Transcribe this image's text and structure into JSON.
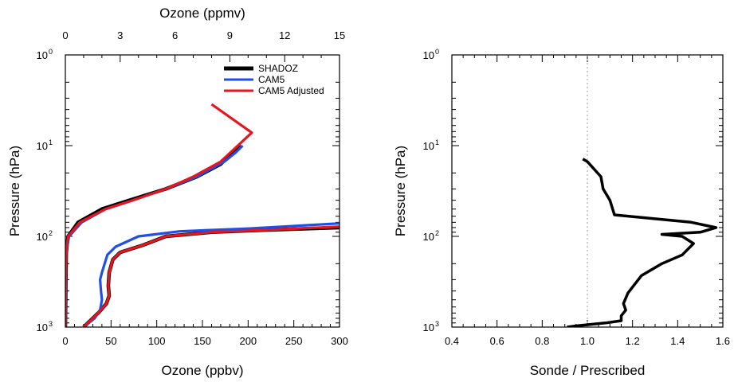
{
  "chart_data": [
    {
      "type": "line",
      "xlabel": "Ozone (ppbv)",
      "x2label": "Ozone (ppmv)",
      "ylabel": "Pressure (hPa)",
      "xlim": [
        0,
        300
      ],
      "x2lim": [
        0,
        15
      ],
      "ylim": [
        1000,
        1
      ],
      "yscale": "log",
      "xticks": [
        "0",
        "50",
        "100",
        "150",
        "200",
        "250",
        "300"
      ],
      "x2ticks": [
        "0",
        "3",
        "6",
        "9",
        "12",
        "15"
      ],
      "yticks": [
        {
          "base": "10",
          "exp": "0"
        },
        {
          "base": "10",
          "exp": "1"
        },
        {
          "base": "10",
          "exp": "2"
        },
        {
          "base": "10",
          "exp": "3"
        }
      ],
      "legend_position": "top-right",
      "series": [
        {
          "name": "SHADOZ",
          "color": "#000000",
          "tropo_ppbv": [
            [
              20,
              1000
            ],
            [
              36,
              700
            ],
            [
              45,
              550
            ],
            [
              48,
              450
            ],
            [
              47,
              350
            ],
            [
              48,
              250
            ],
            [
              52,
              180
            ],
            [
              60,
              150
            ],
            [
              85,
              125
            ],
            [
              110,
              100
            ],
            [
              160,
              90
            ],
            [
              220,
              85
            ],
            [
              300,
              80
            ]
          ],
          "strat_ppmv": [
            [
              0,
              1000
            ],
            [
              0.05,
              150
            ],
            [
              0.15,
              100
            ],
            [
              0.7,
              70
            ],
            [
              2,
              50
            ],
            [
              3.5,
              40
            ],
            [
              5.5,
              30
            ],
            [
              7.2,
              22
            ],
            [
              8.5,
              16
            ],
            [
              9.3,
              11
            ],
            [
              9.6,
              10
            ]
          ]
        },
        {
          "name": "CAM5",
          "color": "#1f4fe8",
          "tropo_ppbv": [
            [
              20,
              1000
            ],
            [
              32,
              800
            ],
            [
              38,
              650
            ],
            [
              40,
              500
            ],
            [
              39,
              400
            ],
            [
              38,
              300
            ],
            [
              40,
              250
            ],
            [
              46,
              160
            ],
            [
              55,
              130
            ],
            [
              80,
              100
            ],
            [
              125,
              88
            ],
            [
              200,
              82
            ],
            [
              300,
              72
            ]
          ],
          "strat_ppmv": [
            [
              0,
              1000
            ],
            [
              0.05,
              150
            ],
            [
              0.2,
              100
            ],
            [
              0.9,
              70
            ],
            [
              2.2,
              50
            ],
            [
              3.7,
              40
            ],
            [
              5.5,
              30
            ],
            [
              7.2,
              22
            ],
            [
              8.7,
              15
            ],
            [
              9.3,
              12
            ],
            [
              9.7,
              10
            ]
          ]
        },
        {
          "name": "CAM5 Adjusted",
          "color": "#e8141e",
          "tropo_ppbv": [
            [
              20,
              1000
            ],
            [
              36,
              700
            ],
            [
              45,
              550
            ],
            [
              48,
              450
            ],
            [
              47,
              350
            ],
            [
              48,
              250
            ],
            [
              52,
              180
            ],
            [
              60,
              150
            ],
            [
              85,
              125
            ],
            [
              110,
              100
            ],
            [
              160,
              90
            ],
            [
              220,
              85
            ],
            [
              300,
              78
            ]
          ],
          "strat_ppmv": [
            [
              0,
              1000
            ],
            [
              0.05,
              150
            ],
            [
              0.15,
              100
            ],
            [
              0.8,
              70
            ],
            [
              2.2,
              50
            ],
            [
              3.7,
              40
            ],
            [
              5.5,
              30
            ],
            [
              7.0,
              22
            ],
            [
              8.5,
              15
            ],
            [
              10.2,
              7.2
            ],
            [
              8.0,
              3.5
            ]
          ]
        }
      ]
    },
    {
      "type": "line",
      "xlabel": "Sonde / Prescribed",
      "ylabel": "Pressure (hPa)",
      "xlim": [
        0.4,
        1.6
      ],
      "ylim": [
        1000,
        1
      ],
      "yscale": "log",
      "xticks": [
        "0.4",
        "0.6",
        "0.8",
        "1.0",
        "1.2",
        "1.4",
        "1.6"
      ],
      "yticks": [
        {
          "base": "10",
          "exp": "0"
        },
        {
          "base": "10",
          "exp": "1"
        },
        {
          "base": "10",
          "exp": "2"
        },
        {
          "base": "10",
          "exp": "3"
        }
      ],
      "reference_line": {
        "x": 1.0,
        "style": "dotted",
        "color": "#bbbbbb"
      },
      "series": [
        {
          "color": "#000000",
          "points": [
            [
              0.91,
              1000
            ],
            [
              0.95,
              970
            ],
            [
              1.08,
              900
            ],
            [
              1.15,
              850
            ],
            [
              1.15,
              750
            ],
            [
              1.17,
              650
            ],
            [
              1.16,
              550
            ],
            [
              1.18,
              420
            ],
            [
              1.24,
              270
            ],
            [
              1.33,
              200
            ],
            [
              1.42,
              160
            ],
            [
              1.47,
              120
            ],
            [
              1.42,
              100
            ],
            [
              1.33,
              95
            ],
            [
              1.5,
              90
            ],
            [
              1.57,
              80
            ],
            [
              1.46,
              70
            ],
            [
              1.12,
              58
            ],
            [
              1.1,
              40
            ],
            [
              1.07,
              30
            ],
            [
              1.06,
              22
            ],
            [
              1.0,
              15
            ],
            [
              0.98,
              14
            ]
          ]
        }
      ]
    }
  ]
}
